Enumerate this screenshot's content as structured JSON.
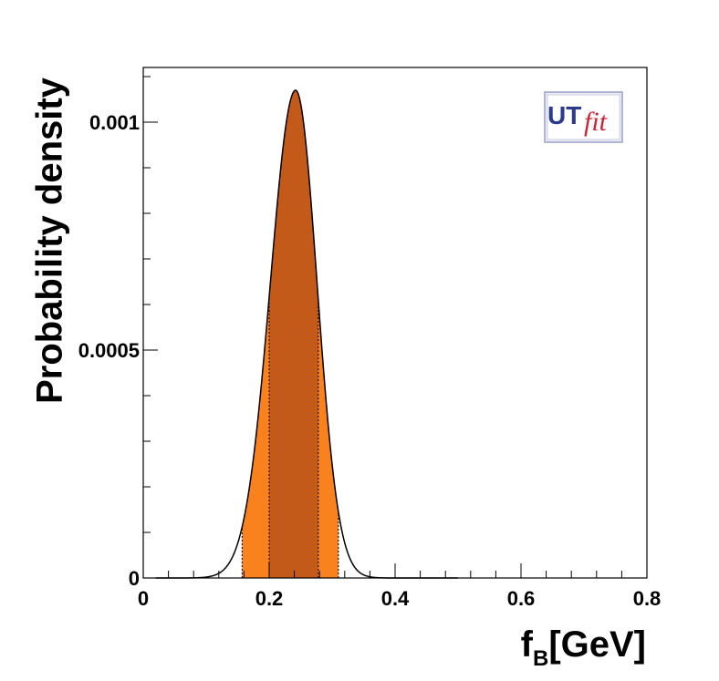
{
  "chart_data": {
    "type": "area",
    "title": "",
    "xlabel": {
      "main": "f",
      "subscript": "B",
      "unit": "[GeV]"
    },
    "ylabel": "Probability density",
    "xlim": [
      0,
      0.8
    ],
    "ylim": [
      0,
      0.00112
    ],
    "x_ticks": [
      0,
      0.2,
      0.4,
      0.6,
      0.8
    ],
    "x_tick_labels": [
      "0",
      "0.2",
      "0.4",
      "0.6",
      "0.8"
    ],
    "y_ticks": [
      0,
      0.0005,
      0.001
    ],
    "y_tick_labels": [
      "0",
      "0.0005",
      "0.001"
    ],
    "grid": false,
    "distribution": {
      "peak_x": 0.242,
      "peak_density": 0.00107,
      "sigma_left": 0.04,
      "sigma_right": 0.034
    },
    "intervals": [
      {
        "level": "95%",
        "x_range": [
          0.157,
          0.31
        ],
        "color": "#fa821e"
      },
      {
        "level": "68%",
        "x_range": [
          0.2,
          0.278
        ],
        "color": "#c45a1a"
      }
    ],
    "curve_color": "#000000",
    "logo": {
      "text_main": "UT",
      "text_script": "fit",
      "main_color": "#2a3a8c",
      "script_color": "#cc2233"
    }
  }
}
